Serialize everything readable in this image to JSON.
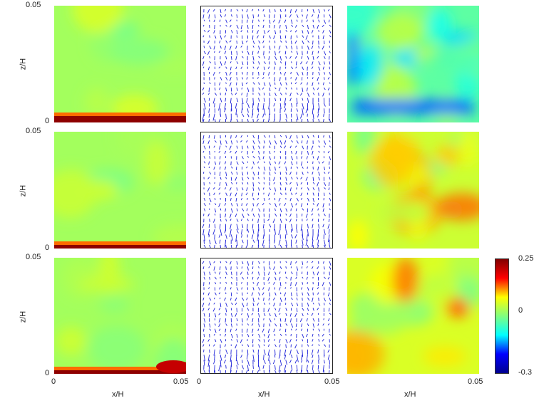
{
  "axis_labels": {
    "ylabel": "z/H",
    "xlabel": "x/H"
  },
  "ticks": {
    "y_top": "0.05",
    "y_bottom": "0",
    "x_left": "0",
    "x_right": "0.05"
  },
  "colorbar": {
    "max_label": "0.25",
    "mid_label": "0",
    "min_label": "-0.3",
    "colormap": "jet",
    "colors": [
      "#00008f",
      "#0000ff",
      "#00ffff",
      "#80ff80",
      "#ffff00",
      "#ff0000",
      "#800000"
    ]
  },
  "chart_data": {
    "type": "heatmap",
    "layout": "3x3 grid: column 1 scalar field, column 2 velocity vector field, column 3 scalar field",
    "x_range": [
      0,
      0.05
    ],
    "y_range": [
      0,
      0.05
    ],
    "color_range": [
      -0.3,
      0.25
    ],
    "xlabel": "x/H",
    "ylabel": "z/H",
    "panels": [
      {
        "row": 1,
        "col": 1,
        "kind": "scalar",
        "background_level": 0.0,
        "feature": "thin high-value layer (~0.25) at z=0 spanning full width"
      },
      {
        "row": 1,
        "col": 2,
        "kind": "vector"
      },
      {
        "row": 1,
        "col": 3,
        "kind": "scalar",
        "background_level": -0.05,
        "feature": "negative band (~ -0.15) near bottom"
      },
      {
        "row": 2,
        "col": 1,
        "kind": "scalar",
        "background_level": 0.0,
        "feature": "thin high-value layer at z=0"
      },
      {
        "row": 2,
        "col": 2,
        "kind": "vector"
      },
      {
        "row": 2,
        "col": 3,
        "kind": "scalar",
        "background_level": 0.03,
        "feature": "mixed weakly positive/negative patches"
      },
      {
        "row": 3,
        "col": 1,
        "kind": "scalar",
        "background_level": 0.0,
        "feature": "high-value layer at z=0, thicker near right edge"
      },
      {
        "row": 3,
        "col": 2,
        "kind": "vector"
      },
      {
        "row": 3,
        "col": 3,
        "kind": "scalar",
        "background_level": 0.04,
        "feature": "positive patches with orange spot near right (~0.12)"
      }
    ]
  }
}
